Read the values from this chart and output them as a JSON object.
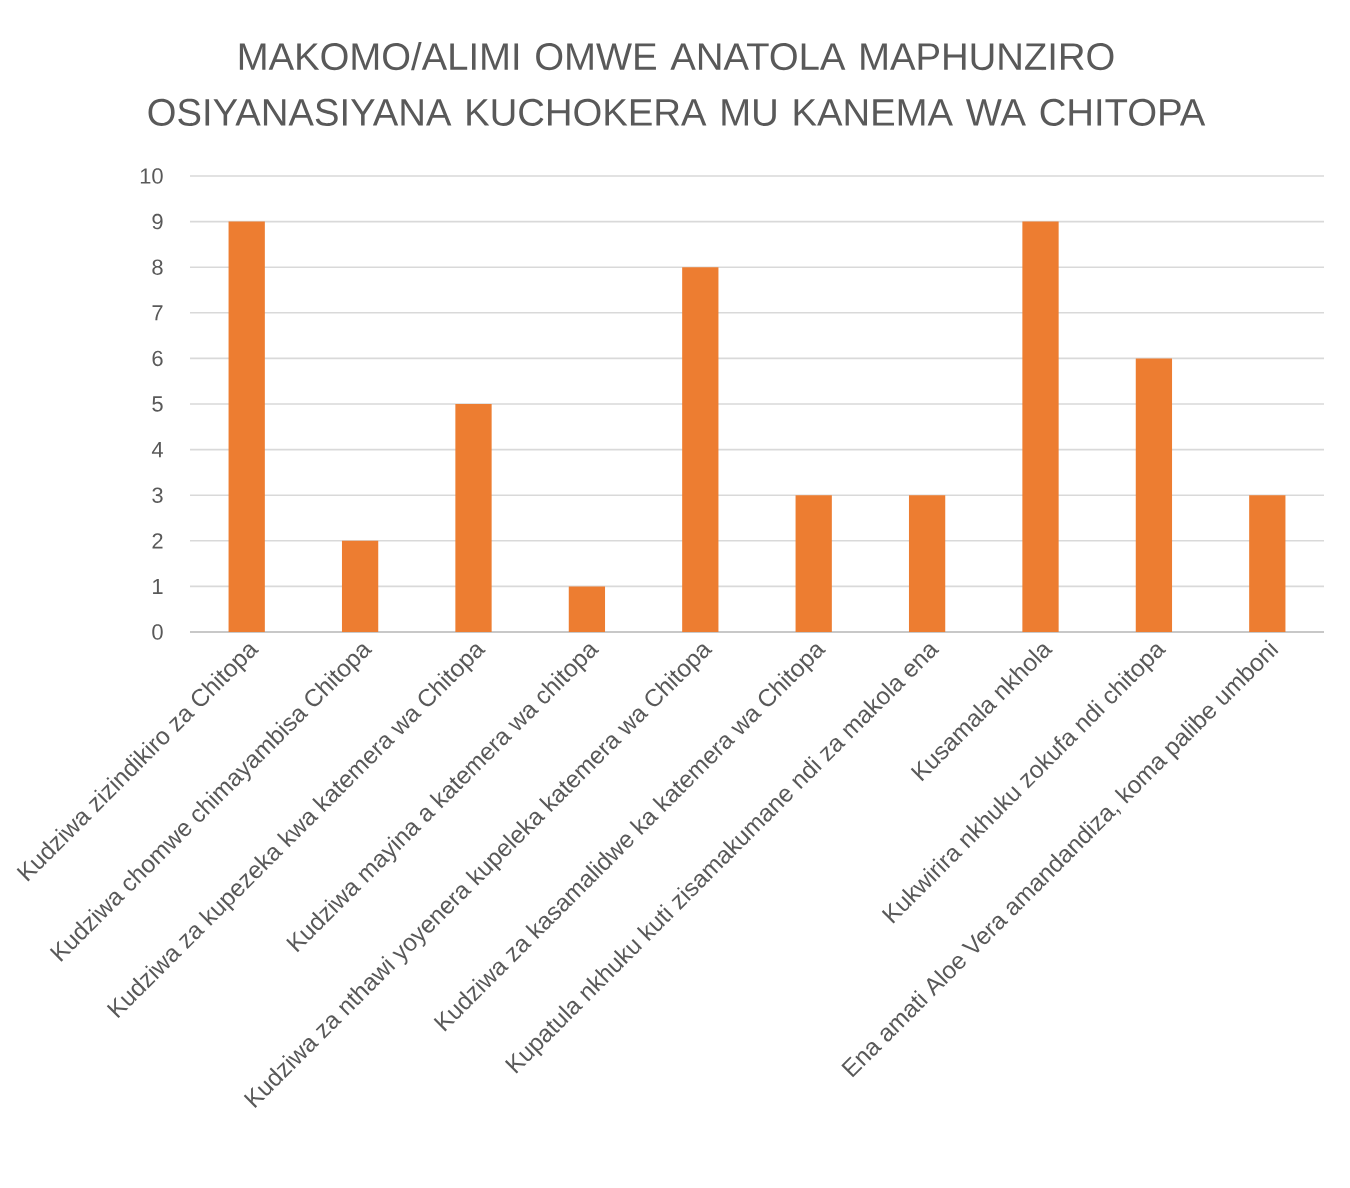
{
  "chart_data": {
    "type": "bar",
    "title": "MAKOMO/ALIMI OMWE ANATOLA MAPHUNZIRO OSIYANASIYANA KUCHOKERA MU KANEMA WA CHITOPA",
    "categories": [
      "Kudziwa zizindikiro za Chitopa",
      "Kudziwa chomwe chimayambisa Chitopa",
      "Kudziwa za kupezeka kwa katemera wa Chitopa",
      "Kudziwa mayina a katemera wa chitopa",
      "Kudziwa za nthawi yoyenera kupeleka katemera wa Chitopa",
      "Kudziwa za kasamalidwe ka katemera wa Chitopa",
      "Kupatula nkhuku kuti zisamakumane ndi za makola ena",
      "Kusamala nkhola",
      "Kukwirira nkhuku zokufa ndi chitopa",
      "Ena amati Aloe Vera amandandiza, koma palibe umboni"
    ],
    "values": [
      9,
      2,
      5,
      1,
      8,
      3,
      3,
      9,
      6,
      3
    ],
    "color": "#ed7d31",
    "ylim": [
      0,
      10
    ],
    "yticks": [
      0,
      1,
      2,
      3,
      4,
      5,
      6,
      7,
      8,
      9,
      10
    ],
    "grid": "y"
  }
}
